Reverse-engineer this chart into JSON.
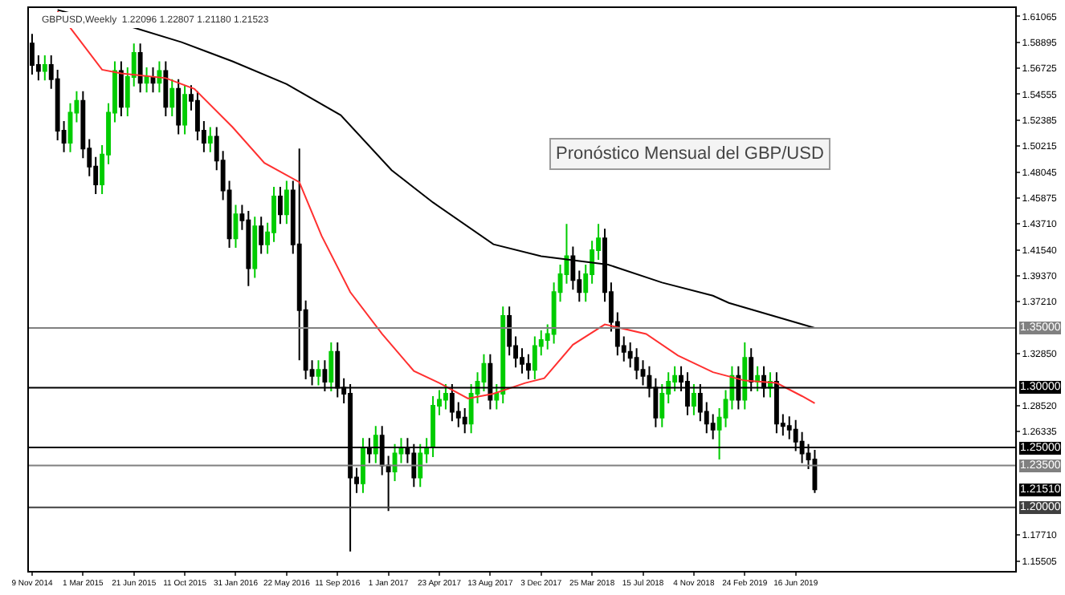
{
  "chart_data": {
    "type": "candlestick",
    "title": "Pronóstico Mensual del GBP/USD",
    "subtitle": "GBPUSD,Weekly  1.22096 1.22807 1.21180 1.21523",
    "x": [
      "2014-11-09",
      "2014-11-23",
      "2014-12-07",
      "2014-12-21",
      "2015-01-04",
      "2015-01-18",
      "2015-02-01",
      "2015-02-15",
      "2015-03-01",
      "2015-03-15",
      "2015-03-29",
      "2015-04-12",
      "2015-04-26",
      "2015-05-10",
      "2015-05-24",
      "2015-06-07",
      "2015-06-21",
      "2015-07-05",
      "2015-07-19",
      "2015-08-02",
      "2015-08-16",
      "2015-08-30",
      "2015-09-13",
      "2015-09-27",
      "2015-10-11",
      "2015-10-25",
      "2015-11-08",
      "2015-11-22",
      "2015-12-06",
      "2015-12-20",
      "2016-01-03",
      "2016-01-17",
      "2016-01-31",
      "2016-02-14",
      "2016-02-28",
      "2016-03-13",
      "2016-03-27",
      "2016-04-10",
      "2016-04-24",
      "2016-05-08",
      "2016-05-22",
      "2016-06-05",
      "2016-06-19",
      "2016-07-03",
      "2016-07-17",
      "2016-07-31",
      "2016-08-14",
      "2016-08-28",
      "2016-09-11",
      "2016-09-25",
      "2016-10-09",
      "2016-10-23",
      "2016-11-06",
      "2016-11-20",
      "2016-12-04",
      "2016-12-18",
      "2017-01-01",
      "2017-01-15",
      "2017-01-29",
      "2017-02-12",
      "2017-02-26",
      "2017-03-12",
      "2017-03-26",
      "2017-04-09",
      "2017-04-23",
      "2017-05-07",
      "2017-05-21",
      "2017-06-04",
      "2017-06-18",
      "2017-07-02",
      "2017-07-16",
      "2017-07-30",
      "2017-08-13",
      "2017-08-27",
      "2017-09-10",
      "2017-09-24",
      "2017-10-08",
      "2017-10-22",
      "2017-11-05",
      "2017-11-19",
      "2017-12-03",
      "2017-12-17",
      "2017-12-31",
      "2018-01-14",
      "2018-01-28",
      "2018-02-11",
      "2018-02-25",
      "2018-03-11",
      "2018-03-25",
      "2018-04-08",
      "2018-04-22",
      "2018-05-06",
      "2018-05-20",
      "2018-06-03",
      "2018-06-17",
      "2018-07-01",
      "2018-07-15",
      "2018-07-29",
      "2018-08-12",
      "2018-08-26",
      "2018-09-09",
      "2018-09-23",
      "2018-10-07",
      "2018-10-21",
      "2018-11-04",
      "2018-11-18",
      "2018-12-02",
      "2018-12-16",
      "2018-12-30",
      "2019-01-13",
      "2019-01-27",
      "2019-02-10",
      "2019-02-24",
      "2019-03-10",
      "2019-03-24",
      "2019-04-07",
      "2019-04-21",
      "2019-05-05",
      "2019-05-19",
      "2019-06-02",
      "2019-06-16",
      "2019-06-30",
      "2019-07-14",
      "2019-07-28"
    ],
    "ohlc": [
      [
        1.588,
        1.596,
        1.562,
        1.57
      ],
      [
        1.57,
        1.578,
        1.557,
        1.565
      ],
      [
        1.565,
        1.578,
        1.557,
        1.57
      ],
      [
        1.57,
        1.578,
        1.55,
        1.558
      ],
      [
        1.558,
        1.566,
        1.507,
        1.515
      ],
      [
        1.515,
        1.523,
        1.497,
        1.505
      ],
      [
        1.505,
        1.538,
        1.497,
        1.53
      ],
      [
        1.53,
        1.548,
        1.522,
        1.54
      ],
      [
        1.54,
        1.548,
        1.492,
        1.5
      ],
      [
        1.5,
        1.508,
        1.477,
        1.485
      ],
      [
        1.485,
        1.493,
        1.462,
        1.47
      ],
      [
        1.47,
        1.503,
        1.462,
        1.495
      ],
      [
        1.495,
        1.538,
        1.487,
        1.53
      ],
      [
        1.53,
        1.573,
        1.522,
        1.565
      ],
      [
        1.565,
        1.573,
        1.527,
        1.535
      ],
      [
        1.535,
        1.568,
        1.527,
        1.56
      ],
      [
        1.56,
        1.588,
        1.552,
        1.58
      ],
      [
        1.58,
        1.588,
        1.547,
        1.555
      ],
      [
        1.555,
        1.568,
        1.547,
        1.56
      ],
      [
        1.56,
        1.568,
        1.547,
        1.555
      ],
      [
        1.555,
        1.573,
        1.547,
        1.565
      ],
      [
        1.565,
        1.573,
        1.527,
        1.535
      ],
      [
        1.535,
        1.558,
        1.527,
        1.55
      ],
      [
        1.55,
        1.558,
        1.512,
        1.52
      ],
      [
        1.52,
        1.553,
        1.512,
        1.545
      ],
      [
        1.545,
        1.553,
        1.532,
        1.54
      ],
      [
        1.54,
        1.548,
        1.507,
        1.515
      ],
      [
        1.515,
        1.523,
        1.497,
        1.505
      ],
      [
        1.505,
        1.518,
        1.497,
        1.51
      ],
      [
        1.51,
        1.518,
        1.482,
        1.49
      ],
      [
        1.49,
        1.498,
        1.457,
        1.465
      ],
      [
        1.465,
        1.473,
        1.417,
        1.425
      ],
      [
        1.425,
        1.453,
        1.417,
        1.445
      ],
      [
        1.445,
        1.453,
        1.432,
        1.44
      ],
      [
        1.44,
        1.448,
        1.385,
        1.4
      ],
      [
        1.4,
        1.443,
        1.392,
        1.435
      ],
      [
        1.435,
        1.443,
        1.412,
        1.42
      ],
      [
        1.42,
        1.438,
        1.412,
        1.43
      ],
      [
        1.43,
        1.468,
        1.422,
        1.46
      ],
      [
        1.46,
        1.468,
        1.437,
        1.445
      ],
      [
        1.445,
        1.473,
        1.437,
        1.465
      ],
      [
        1.465,
        1.473,
        1.412,
        1.42
      ],
      [
        1.42,
        1.5,
        1.323,
        1.365
      ],
      [
        1.365,
        1.373,
        1.307,
        1.315
      ],
      [
        1.315,
        1.323,
        1.302,
        1.31
      ],
      [
        1.31,
        1.323,
        1.302,
        1.315
      ],
      [
        1.315,
        1.323,
        1.297,
        1.305
      ],
      [
        1.305,
        1.338,
        1.297,
        1.33
      ],
      [
        1.33,
        1.338,
        1.292,
        1.3
      ],
      [
        1.3,
        1.308,
        1.287,
        1.295
      ],
      [
        1.295,
        1.303,
        1.163,
        1.225
      ],
      [
        1.225,
        1.233,
        1.212,
        1.22
      ],
      [
        1.22,
        1.258,
        1.212,
        1.25
      ],
      [
        1.25,
        1.258,
        1.237,
        1.245
      ],
      [
        1.245,
        1.268,
        1.237,
        1.26
      ],
      [
        1.26,
        1.268,
        1.227,
        1.235
      ],
      [
        1.235,
        1.243,
        1.197,
        1.23
      ],
      [
        1.23,
        1.253,
        1.222,
        1.245
      ],
      [
        1.245,
        1.258,
        1.237,
        1.25
      ],
      [
        1.25,
        1.258,
        1.237,
        1.245
      ],
      [
        1.245,
        1.253,
        1.217,
        1.225
      ],
      [
        1.225,
        1.253,
        1.217,
        1.245
      ],
      [
        1.245,
        1.258,
        1.237,
        1.25
      ],
      [
        1.25,
        1.293,
        1.242,
        1.285
      ],
      [
        1.285,
        1.298,
        1.277,
        1.29
      ],
      [
        1.29,
        1.303,
        1.282,
        1.295
      ],
      [
        1.295,
        1.303,
        1.272,
        1.28
      ],
      [
        1.28,
        1.288,
        1.267,
        1.275
      ],
      [
        1.275,
        1.283,
        1.262,
        1.27
      ],
      [
        1.27,
        1.303,
        1.262,
        1.295
      ],
      [
        1.295,
        1.313,
        1.287,
        1.305
      ],
      [
        1.305,
        1.328,
        1.297,
        1.32
      ],
      [
        1.32,
        1.328,
        1.282,
        1.29
      ],
      [
        1.29,
        1.303,
        1.282,
        1.295
      ],
      [
        1.295,
        1.368,
        1.287,
        1.36
      ],
      [
        1.36,
        1.368,
        1.327,
        1.335
      ],
      [
        1.335,
        1.343,
        1.317,
        1.325
      ],
      [
        1.325,
        1.333,
        1.312,
        1.32
      ],
      [
        1.32,
        1.328,
        1.307,
        1.315
      ],
      [
        1.315,
        1.343,
        1.307,
        1.335
      ],
      [
        1.335,
        1.348,
        1.327,
        1.34
      ],
      [
        1.34,
        1.353,
        1.332,
        1.345
      ],
      [
        1.345,
        1.388,
        1.337,
        1.38
      ],
      [
        1.38,
        1.403,
        1.372,
        1.395
      ],
      [
        1.395,
        1.437,
        1.387,
        1.41
      ],
      [
        1.41,
        1.418,
        1.382,
        1.39
      ],
      [
        1.39,
        1.398,
        1.372,
        1.38
      ],
      [
        1.38,
        1.403,
        1.372,
        1.395
      ],
      [
        1.395,
        1.423,
        1.387,
        1.415
      ],
      [
        1.415,
        1.437,
        1.407,
        1.425
      ],
      [
        1.425,
        1.433,
        1.372,
        1.38
      ],
      [
        1.38,
        1.388,
        1.347,
        1.355
      ],
      [
        1.355,
        1.363,
        1.327,
        1.335
      ],
      [
        1.335,
        1.343,
        1.322,
        1.33
      ],
      [
        1.33,
        1.338,
        1.317,
        1.325
      ],
      [
        1.325,
        1.333,
        1.307,
        1.315
      ],
      [
        1.315,
        1.323,
        1.302,
        1.31
      ],
      [
        1.31,
        1.318,
        1.292,
        1.3
      ],
      [
        1.3,
        1.308,
        1.267,
        1.275
      ],
      [
        1.275,
        1.303,
        1.267,
        1.295
      ],
      [
        1.295,
        1.313,
        1.287,
        1.305
      ],
      [
        1.305,
        1.318,
        1.297,
        1.31
      ],
      [
        1.31,
        1.318,
        1.297,
        1.305
      ],
      [
        1.305,
        1.313,
        1.277,
        1.285
      ],
      [
        1.285,
        1.303,
        1.277,
        1.295
      ],
      [
        1.295,
        1.303,
        1.272,
        1.28
      ],
      [
        1.28,
        1.288,
        1.262,
        1.27
      ],
      [
        1.27,
        1.278,
        1.257,
        1.265
      ],
      [
        1.265,
        1.283,
        1.24,
        1.275
      ],
      [
        1.275,
        1.298,
        1.267,
        1.29
      ],
      [
        1.29,
        1.318,
        1.282,
        1.31
      ],
      [
        1.31,
        1.318,
        1.282,
        1.29
      ],
      [
        1.29,
        1.338,
        1.282,
        1.325
      ],
      [
        1.325,
        1.333,
        1.297,
        1.305
      ],
      [
        1.305,
        1.318,
        1.297,
        1.31
      ],
      [
        1.31,
        1.318,
        1.292,
        1.3
      ],
      [
        1.3,
        1.313,
        1.292,
        1.305
      ],
      [
        1.305,
        1.313,
        1.262,
        1.27
      ],
      [
        1.27,
        1.278,
        1.26,
        1.268
      ],
      [
        1.268,
        1.276,
        1.257,
        1.265
      ],
      [
        1.265,
        1.273,
        1.247,
        1.255
      ],
      [
        1.255,
        1.263,
        1.237,
        1.245
      ],
      [
        1.245,
        1.253,
        1.232,
        1.24
      ],
      [
        1.24,
        1.248,
        1.212,
        1.2151
      ]
    ],
    "colors": [
      "#000000",
      "#000000",
      "#00cc00",
      "#000000",
      "#000000",
      "#000000",
      "#00cc00",
      "#00cc00",
      "#000000",
      "#000000",
      "#000000",
      "#00cc00",
      "#00cc00",
      "#00cc00",
      "#000000",
      "#00cc00",
      "#00cc00",
      "#000000",
      "#00cc00",
      "#000000",
      "#00cc00",
      "#000000",
      "#00cc00",
      "#000000",
      "#00cc00",
      "#000000",
      "#000000",
      "#000000",
      "#00cc00",
      "#000000",
      "#000000",
      "#000000",
      "#00cc00",
      "#000000",
      "#000000",
      "#00cc00",
      "#000000",
      "#00cc00",
      "#00cc00",
      "#000000",
      "#00cc00",
      "#000000",
      "#000000",
      "#000000",
      "#000000",
      "#00cc00",
      "#000000",
      "#00cc00",
      "#000000",
      "#000000",
      "#000000",
      "#000000",
      "#00cc00",
      "#000000",
      "#00cc00",
      "#000000",
      "#000000",
      "#00cc00",
      "#00cc00",
      "#000000",
      "#000000",
      "#00cc00",
      "#00cc00",
      "#00cc00",
      "#00cc00",
      "#00cc00",
      "#000000",
      "#000000",
      "#000000",
      "#00cc00",
      "#00cc00",
      "#00cc00",
      "#000000",
      "#00cc00",
      "#00cc00",
      "#000000",
      "#000000",
      "#000000",
      "#000000",
      "#00cc00",
      "#00cc00",
      "#00cc00",
      "#00cc00",
      "#00cc00",
      "#00cc00",
      "#000000",
      "#000000",
      "#00cc00",
      "#00cc00",
      "#00cc00",
      "#000000",
      "#000000",
      "#000000",
      "#000000",
      "#000000",
      "#000000",
      "#000000",
      "#000000",
      "#000000",
      "#00cc00",
      "#00cc00",
      "#00cc00",
      "#000000",
      "#000000",
      "#00cc00",
      "#000000",
      "#000000",
      "#000000",
      "#00cc00",
      "#00cc00",
      "#00cc00",
      "#000000",
      "#00cc00",
      "#000000",
      "#00cc00",
      "#000000",
      "#00cc00",
      "#000000",
      "#000000",
      "#000000",
      "#000000",
      "#000000",
      "#000000",
      "#000000"
    ],
    "series": [
      {
        "type": "line",
        "color": "#ff3030",
        "x": [
          "2015-01-04",
          "2015-02-15",
          "2015-04-12",
          "2015-05-24",
          "2015-08-30",
          "2015-11-01",
          "2016-01-24",
          "2016-04-03",
          "2016-06-19",
          "2016-08-07",
          "2016-10-09",
          "2016-12-18",
          "2017-02-26",
          "2017-04-23",
          "2017-06-25",
          "2017-08-20",
          "2017-10-29",
          "2017-12-10",
          "2018-02-11",
          "2018-04-22",
          "2018-07-22",
          "2018-09-30",
          "2018-12-16",
          "2019-02-24",
          "2019-05-05",
          "2019-06-30",
          "2019-07-28"
        ],
        "values": [
          1.615,
          1.594,
          1.566,
          1.563,
          1.559,
          1.55,
          1.518,
          1.488,
          1.472,
          1.427,
          1.38,
          1.345,
          1.314,
          1.304,
          1.291,
          1.295,
          1.304,
          1.308,
          1.336,
          1.353,
          1.345,
          1.327,
          1.313,
          1.306,
          1.304,
          1.293,
          1.287
        ]
      },
      {
        "type": "line",
        "color": "#000000",
        "x": [
          "2015-01-04",
          "2015-02-15",
          "2015-06-14",
          "2015-10-04",
          "2016-01-24",
          "2016-05-22",
          "2016-09-18",
          "2017-01-08",
          "2017-04-09",
          "2017-08-20",
          "2017-12-03",
          "2018-04-29",
          "2018-08-26",
          "2018-12-16",
          "2019-01-20",
          "2019-07-28"
        ],
        "values": [
          1.616,
          1.612,
          1.602,
          1.589,
          1.573,
          1.554,
          1.528,
          1.482,
          1.455,
          1.42,
          1.41,
          1.403,
          1.388,
          1.377,
          1.371,
          1.35
        ]
      }
    ],
    "xlim": [
      "2014-11-02",
      "2020-10-11"
    ],
    "xticks": [
      {
        "value": "2014-11-09",
        "label": "9 Nov 2014"
      },
      {
        "value": "2015-03-01",
        "label": "1 Mar 2015"
      },
      {
        "value": "2015-06-21",
        "label": "21 Jun 2015"
      },
      {
        "value": "2015-10-11",
        "label": "11 Oct 2015"
      },
      {
        "value": "2016-01-31",
        "label": "31 Jan 2016"
      },
      {
        "value": "2016-05-22",
        "label": "22 May 2016"
      },
      {
        "value": "2016-09-11",
        "label": "11 Sep 2016"
      },
      {
        "value": "2017-01-01",
        "label": "1 Jan 2017"
      },
      {
        "value": "2017-04-23",
        "label": "23 Apr 2017"
      },
      {
        "value": "2017-08-13",
        "label": "13 Aug 2017"
      },
      {
        "value": "2017-12-03",
        "label": "3 Dec 2017"
      },
      {
        "value": "2018-03-25",
        "label": "25 Mar 2018"
      },
      {
        "value": "2018-07-15",
        "label": "15 Jul 2018"
      },
      {
        "value": "2018-11-04",
        "label": "4 Nov 2018"
      },
      {
        "value": "2019-02-24",
        "label": "24 Feb 2019"
      },
      {
        "value": "2019-06-16",
        "label": "16 Jun 2019"
      }
    ],
    "ylim": [
      1.1468,
      1.6176
    ],
    "yticks": [
      1.61065,
      1.58895,
      1.56725,
      1.54555,
      1.52385,
      1.50215,
      1.48045,
      1.45875,
      {
        "value": 1.4371,
        "label": "1.43710"
      },
      {
        "value": 1.4154,
        "label": "1.41540"
      },
      {
        "value": 1.3937,
        "label": "1.39370"
      },
      {
        "value": 1.3721,
        "label": "1.37210"
      },
      {
        "value": 1.3285,
        "label": "1.32850"
      },
      {
        "value": 1.2852,
        "label": "1.28520"
      },
      1.26335,
      {
        "value": 1.1771,
        "label": "1.17710"
      },
      1.15505
    ],
    "annotations": [
      {
        "text": "1.21510",
        "y": 1.2151
      }
    ],
    "ref_lines": [
      {
        "axis": "y",
        "value": 1.35,
        "label": "1.35000",
        "color": "#808080",
        "line_style": "solid"
      },
      {
        "axis": "y",
        "value": 1.3,
        "label": "1.30000",
        "color": "#000000",
        "line_style": "solid"
      },
      {
        "axis": "y",
        "value": 1.25,
        "label": "1.25000",
        "color": "#000000",
        "line_style": "solid"
      },
      {
        "axis": "y",
        "value": 1.235,
        "label": "1.23500",
        "color": "#808080",
        "line_style": "solid"
      },
      {
        "axis": "y",
        "value": 1.2,
        "label": "1.20000",
        "color": "#404040",
        "line_style": "solid"
      }
    ],
    "line_style": "solid",
    "marker": "none"
  }
}
